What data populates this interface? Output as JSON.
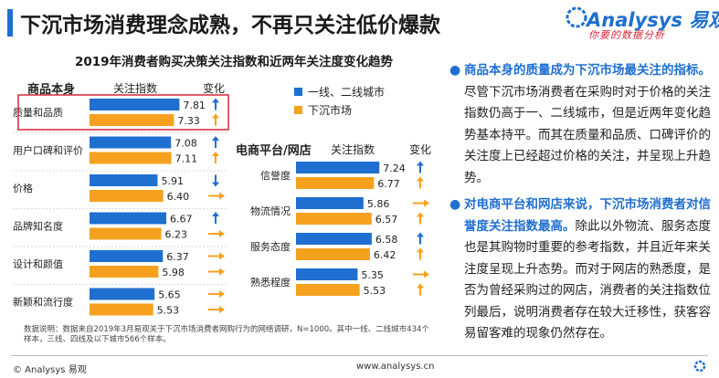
{
  "header": {
    "title": "下沉市场消费理念成熟，不再只关注低价爆款",
    "logo_name": "Analysys 易观",
    "logo_slogan": "你要的数据分析"
  },
  "colors": {
    "tier12": "#1f6fd1",
    "lower": "#f5a11e",
    "up_arrow": "#1f6fd1",
    "flat_arrow": "#f5a11e",
    "down_arrow": "#1f6fd1",
    "highlight_box": "#d9263a",
    "accent": "#1f6fd1"
  },
  "chart_data": {
    "title": "2019年消费者购买决策关注指数和近两年关注度变化趋势",
    "legend": {
      "series1": "一线、二线城市",
      "series2": "下沉市场",
      "placement": "top-center"
    },
    "charts": [
      {
        "type": "bar",
        "orientation": "horizontal",
        "section_label": "商品本身",
        "index_header": "关注指数",
        "change_header": "变化",
        "categories": [
          "质量和品质",
          "用户口碑和评价",
          "价格",
          "品牌知名度",
          "设计和颜值",
          "新颖和流行度"
        ],
        "series": [
          {
            "name": "一线、二线城市",
            "values": [
              7.81,
              7.08,
              5.91,
              6.67,
              6.37,
              5.65
            ]
          },
          {
            "name": "下沉市场",
            "values": [
              7.33,
              7.11,
              6.4,
              6.23,
              5.98,
              5.53
            ]
          }
        ],
        "trend": [
          [
            "up",
            "up"
          ],
          [
            "up",
            "up"
          ],
          [
            "down",
            "flat"
          ],
          [
            "up",
            "flat"
          ],
          [
            "flat",
            "flat"
          ],
          [
            "flat",
            "flat"
          ]
        ],
        "highlight_category": "质量和品质"
      },
      {
        "type": "bar",
        "orientation": "horizontal",
        "section_label": "电商平台/网店",
        "index_header": "关注指数",
        "change_header": "变化",
        "categories": [
          "信誉度",
          "物流情况",
          "服务态度",
          "熟悉程度"
        ],
        "series": [
          {
            "name": "一线、二线城市",
            "values": [
              7.24,
              5.86,
              6.58,
              5.35
            ]
          },
          {
            "name": "下沉市场",
            "values": [
              6.77,
              6.57,
              6.42,
              5.53
            ]
          }
        ],
        "trend": [
          [
            "up",
            "up"
          ],
          [
            "flat",
            "up"
          ],
          [
            "up",
            "up"
          ],
          [
            "flat",
            "up"
          ]
        ]
      }
    ]
  },
  "insights": [
    {
      "bold": "商品本身的质量成为下沉市场最关注的指标。",
      "text": "尽管下沉市场消费者在采购时对于价格的关注指数仍高于一、二线城市，但是近两年变化趋势基本持平。而其在质量和品质、口碑评价的关注度上已经超过价格的关注，并呈现上升趋势。"
    },
    {
      "bold": "对电商平台和网店来说，下沉市场消费者对信誉度关注指数最高。",
      "text": "除此以外物流、服务态度也是其购物时重要的参考指数，并且近年来关注度呈现上升态势。而对于网店的熟悉度，是否为曾经采购过的网店，消费者的关注指数位列最后，说明消费者存在较大迁移性，获客容易留客难的现象仍然存在。"
    }
  ],
  "footnote": "数据说明：数据来自2019年3月易观关于下沉市场消费者网购行为的网络调研，N=1000。其中一线、二线城市434个样本，三线、四线及以下城市566个样本。",
  "footer": {
    "left": "© Analysys 易观",
    "url": "www.analysys.cn"
  }
}
